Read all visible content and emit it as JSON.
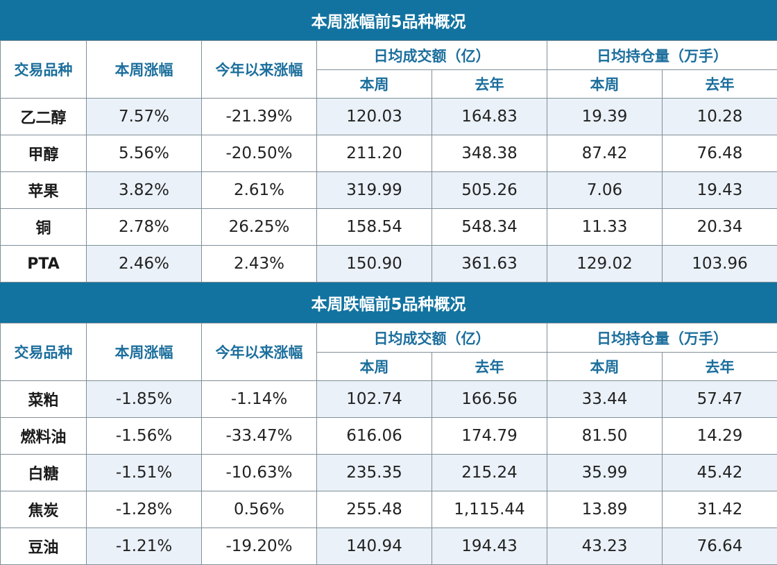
{
  "sections": [
    {
      "title": "本周涨幅前5品种概况",
      "headers": {
        "variety": "交易品种",
        "week_change": "本周涨幅",
        "ytd_change": "今年以来涨幅",
        "avg_volume": "日均成交额（亿）",
        "avg_open_interest": "日均持仓量（万手）",
        "this_week": "本周",
        "last_year": "去年",
        "this_week_2": "本周",
        "last_year_2": "去年"
      },
      "rows": [
        [
          "乙二醇",
          "7.57%",
          "-21.39%",
          "120.03",
          "164.83",
          "19.39",
          "10.28"
        ],
        [
          "甲醇",
          "5.56%",
          "-20.50%",
          "211.20",
          "348.38",
          "87.42",
          "76.48"
        ],
        [
          "苹果",
          "3.82%",
          "2.61%",
          "319.99",
          "505.26",
          "7.06",
          "19.43"
        ],
        [
          "铜",
          "2.78%",
          "26.25%",
          "158.54",
          "548.34",
          "11.33",
          "20.34"
        ],
        [
          "PTA",
          "2.46%",
          "2.43%",
          "150.90",
          "361.63",
          "129.02",
          "103.96"
        ]
      ]
    },
    {
      "title": "本周跌幅前5品种概况",
      "headers": {
        "variety": "交易品种",
        "week_change": "本周涨幅",
        "ytd_change": "今年以来涨幅",
        "avg_volume": "日均成交额（亿）",
        "avg_open_interest": "日均持仓量（万手）",
        "this_week": "本周",
        "last_year": "去年",
        "this_week_2": "本周",
        "last_year_2": "去年"
      },
      "rows": [
        [
          "菜粕",
          "-1.85%",
          "-1.14%",
          "102.74",
          "166.56",
          "33.44",
          "57.47"
        ],
        [
          "燃料油",
          "-1.56%",
          "-33.47%",
          "616.06",
          "174.79",
          "81.50",
          "14.29"
        ],
        [
          "白糖",
          "-1.51%",
          "-10.63%",
          "235.35",
          "215.24",
          "35.99",
          "45.42"
        ],
        [
          "焦炭",
          "-1.28%",
          "0.56%",
          "255.48",
          "1,115.44",
          "13.89",
          "31.42"
        ],
        [
          "豆油",
          "-1.21%",
          "-19.20%",
          "140.94",
          "194.43",
          "43.23",
          "76.64"
        ]
      ]
    }
  ],
  "colors": {
    "banner": "#1273a0",
    "header_text": "#1b6e9c",
    "alt_row": "#eaf1f8",
    "border": "#7f8e97"
  }
}
